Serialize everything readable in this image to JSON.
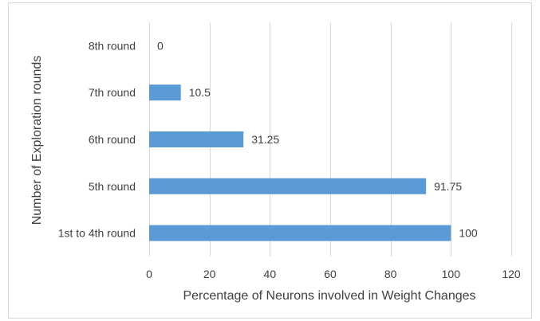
{
  "chart_data": {
    "type": "bar",
    "orientation": "horizontal",
    "title": "",
    "xlabel": "Percentage of Neurons involved in Weight Changes",
    "ylabel": "Number of Exploration rounds",
    "categories": [
      "1st to 4th round",
      "5th round",
      "6th round",
      "7th round",
      "8th round"
    ],
    "values": [
      100,
      91.75,
      31.25,
      10.5,
      0
    ],
    "value_labels": [
      "100",
      "91.75",
      "31.25",
      "10.5",
      "0"
    ],
    "xlim": [
      0,
      120
    ],
    "xticks": [
      "0",
      "20",
      "40",
      "60",
      "80",
      "100",
      "120"
    ],
    "grid": "vertical",
    "legend": "none",
    "bar_color": "#5b9bd5",
    "grid_color": "#d9d9d9",
    "text_color": "#404040",
    "border_color": "#d9d9d9"
  }
}
